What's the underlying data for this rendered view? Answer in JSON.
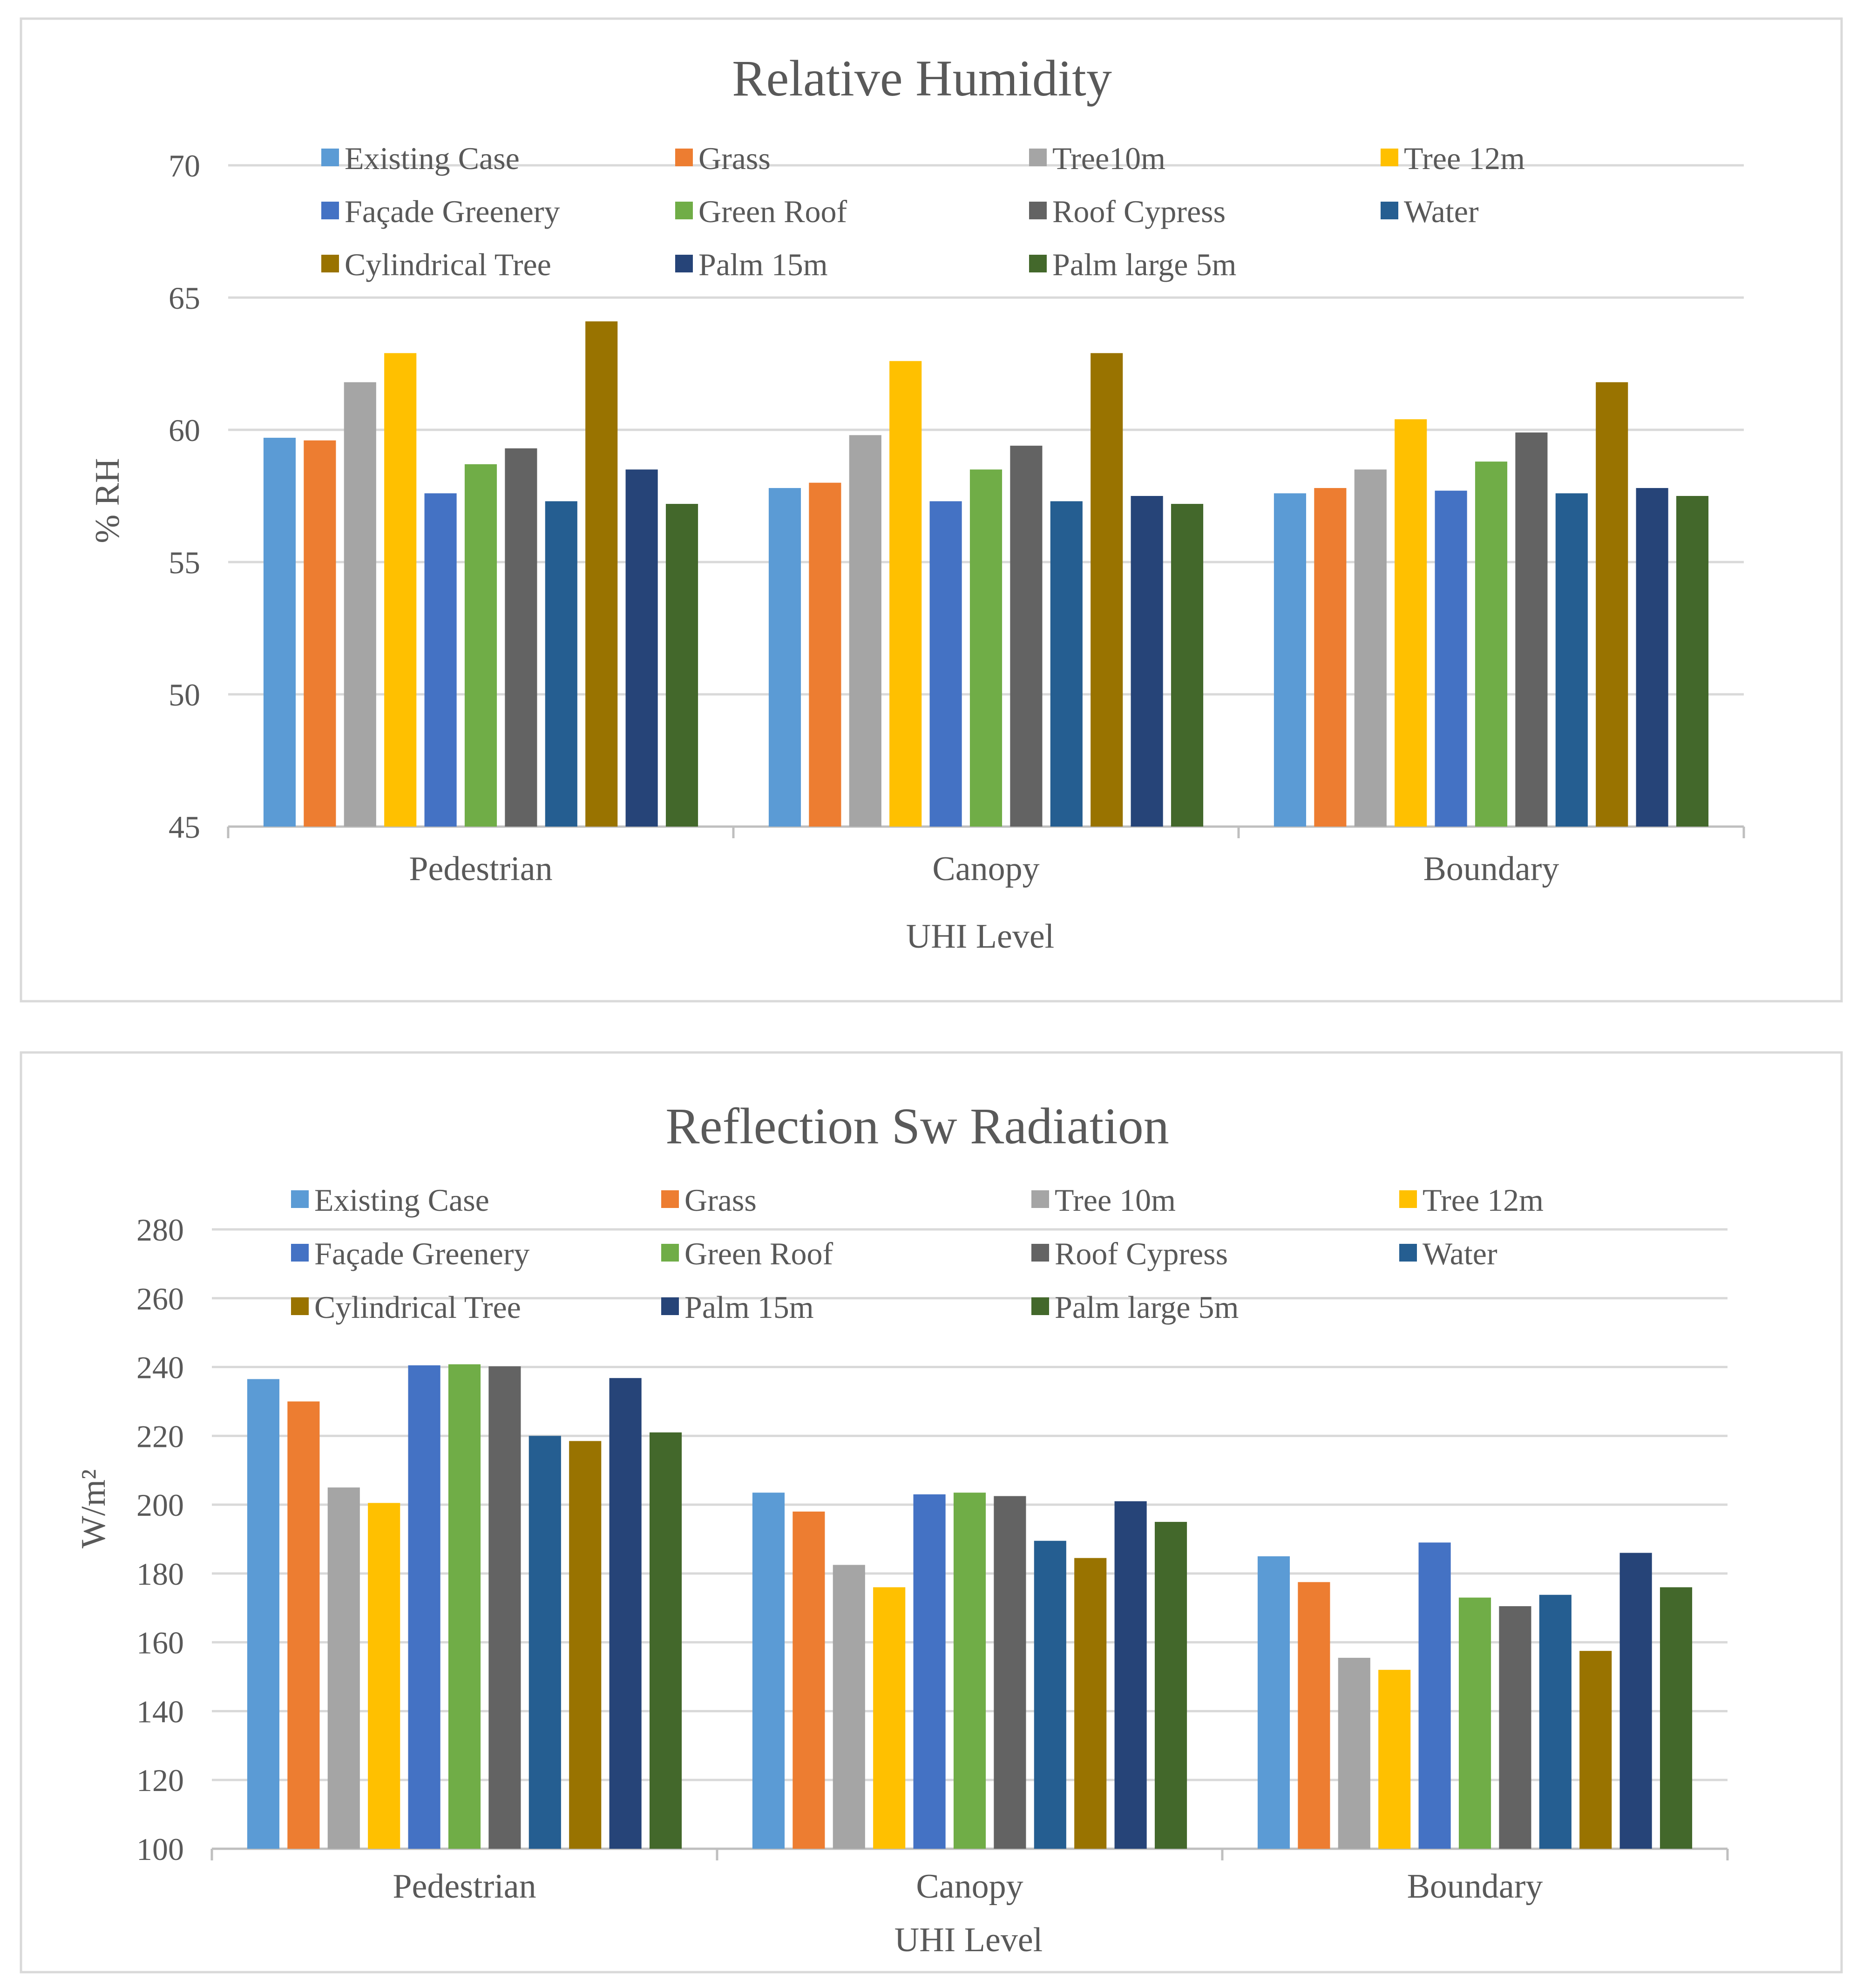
{
  "chart_data": [
    {
      "type": "bar",
      "title": "Relative Humidity",
      "xlabel": "UHI Level",
      "ylabel": "% RH",
      "ylim": [
        45,
        70
      ],
      "yticks": [
        45,
        50,
        55,
        60,
        65,
        70
      ],
      "grid": true,
      "legend_position": "top",
      "categories": [
        "Pedestrian",
        "Canopy",
        "Boundary"
      ],
      "series": [
        {
          "name": "Existing Case",
          "color": "#5b9bd5",
          "values": [
            59.7,
            57.8,
            57.6
          ]
        },
        {
          "name": "Grass",
          "color": "#ed7d31",
          "values": [
            59.6,
            58.0,
            57.8
          ]
        },
        {
          "name": "Tree10m",
          "color": "#a5a5a5",
          "values": [
            61.8,
            59.8,
            58.5
          ]
        },
        {
          "name": "Tree 12m",
          "color": "#ffc000",
          "values": [
            62.9,
            62.6,
            60.4
          ]
        },
        {
          "name": "Façade Greenery",
          "color": "#4472c4",
          "values": [
            57.6,
            57.3,
            57.7
          ]
        },
        {
          "name": "Green Roof",
          "color": "#70ad47",
          "values": [
            58.7,
            58.5,
            58.8
          ]
        },
        {
          "name": "Roof Cypress",
          "color": "#636363",
          "values": [
            59.3,
            59.4,
            59.9
          ]
        },
        {
          "name": "Water",
          "color": "#255e91",
          "values": [
            57.3,
            57.3,
            57.6
          ]
        },
        {
          "name": "Cylindrical Tree",
          "color": "#997300",
          "values": [
            64.1,
            62.9,
            61.8
          ]
        },
        {
          "name": "Palm 15m",
          "color": "#264478",
          "values": [
            58.5,
            57.5,
            57.8
          ]
        },
        {
          "name": "Palm large 5m",
          "color": "#43682b",
          "values": [
            57.2,
            57.2,
            57.5
          ]
        }
      ]
    },
    {
      "type": "bar",
      "title": "Reflection Sw Radiation",
      "xlabel": "UHI Level",
      "ylabel": "W/m²",
      "ylim": [
        100,
        280
      ],
      "yticks": [
        100,
        120,
        140,
        160,
        180,
        200,
        220,
        240,
        260,
        280
      ],
      "grid": true,
      "legend_position": "top",
      "categories": [
        "Pedestrian",
        "Canopy",
        "Boundary"
      ],
      "series": [
        {
          "name": "Existing Case",
          "color": "#5b9bd5",
          "values": [
            236.5,
            203.5,
            185.0
          ]
        },
        {
          "name": "Grass",
          "color": "#ed7d31",
          "values": [
            230.0,
            198.0,
            177.5
          ]
        },
        {
          "name": "Tree 10m",
          "color": "#a5a5a5",
          "values": [
            205.0,
            182.5,
            155.5
          ]
        },
        {
          "name": "Tree 12m",
          "color": "#ffc000",
          "values": [
            200.5,
            176.0,
            152.0
          ]
        },
        {
          "name": "Façade Greenery",
          "color": "#4472c4",
          "values": [
            240.5,
            203.0,
            189.0
          ]
        },
        {
          "name": "Green Roof",
          "color": "#70ad47",
          "values": [
            240.8,
            203.5,
            173.0
          ]
        },
        {
          "name": "Roof Cypress",
          "color": "#636363",
          "values": [
            240.2,
            202.5,
            170.5
          ]
        },
        {
          "name": "Water",
          "color": "#255e91",
          "values": [
            220.0,
            189.5,
            173.8
          ]
        },
        {
          "name": "Cylindrical Tree",
          "color": "#997300",
          "values": [
            218.5,
            184.5,
            157.5
          ]
        },
        {
          "name": "Palm 15m",
          "color": "#264478",
          "values": [
            236.8,
            201.0,
            186.0
          ]
        },
        {
          "name": "Palm large 5m",
          "color": "#43682b",
          "values": [
            221.0,
            195.0,
            176.0
          ]
        }
      ]
    }
  ]
}
